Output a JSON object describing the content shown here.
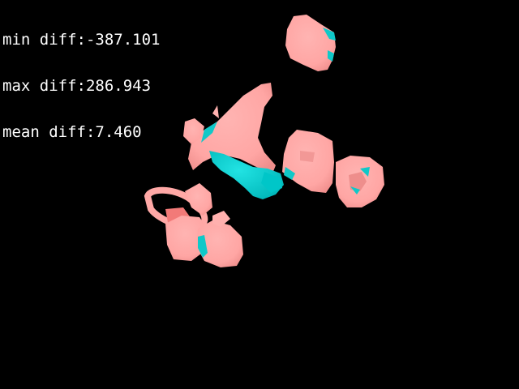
{
  "overlay": {
    "min_diff": "min diff:-387.101",
    "max_diff": "max diff:286.943",
    "mean_diff": "mean diff:7.460"
  },
  "colors": {
    "background": "#000000",
    "text": "#ffffff",
    "positive_diff": "#ffa9a7",
    "negative_diff": "#00d6d6"
  }
}
